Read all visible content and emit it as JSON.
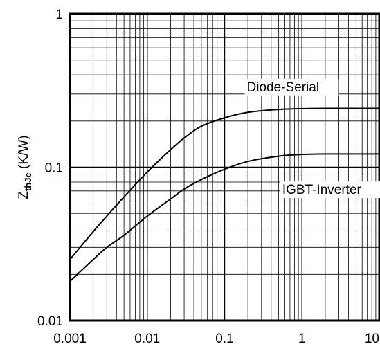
{
  "chart_data": {
    "type": "line",
    "title": "",
    "xlabel": "",
    "ylabel": {
      "main": "Z",
      "subscript": "thJc",
      "unit": " (K/W)"
    },
    "xscale": "log",
    "yscale": "log",
    "xlim": [
      0.001,
      10
    ],
    "ylim": [
      0.01,
      1
    ],
    "grid": true,
    "x_ticks": [
      {
        "value": 0.001,
        "label": "0.001"
      },
      {
        "value": 0.01,
        "label": "0.01"
      },
      {
        "value": 0.1,
        "label": "0.1"
      },
      {
        "value": 1,
        "label": "1"
      },
      {
        "value": 10,
        "label": "10"
      }
    ],
    "y_ticks": [
      {
        "value": 0.01,
        "label": "0.01"
      },
      {
        "value": 0.1,
        "label": "0.1"
      },
      {
        "value": 1,
        "label": "1"
      }
    ],
    "series": [
      {
        "name": "Diode-Serial",
        "color": "#000000",
        "x": [
          0.001,
          0.002,
          0.003,
          0.005,
          0.01,
          0.02,
          0.03,
          0.05,
          0.1,
          0.2,
          0.5,
          1,
          2,
          5,
          10
        ],
        "y": [
          0.025,
          0.038,
          0.048,
          0.064,
          0.093,
          0.13,
          0.155,
          0.185,
          0.21,
          0.228,
          0.238,
          0.241,
          0.242,
          0.242,
          0.242
        ]
      },
      {
        "name": "IGBT-Inverter",
        "color": "#000000",
        "x": [
          0.001,
          0.002,
          0.003,
          0.005,
          0.01,
          0.02,
          0.03,
          0.05,
          0.1,
          0.2,
          0.5,
          1,
          2,
          5,
          10
        ],
        "y": [
          0.018,
          0.025,
          0.03,
          0.036,
          0.048,
          0.062,
          0.072,
          0.083,
          0.097,
          0.109,
          0.118,
          0.121,
          0.122,
          0.122,
          0.122
        ]
      }
    ],
    "annotations": [
      {
        "text": "Diode-Serial",
        "series": "Diode-Serial"
      },
      {
        "text": "IGBT-Inverter",
        "series": "IGBT-Inverter"
      }
    ]
  }
}
